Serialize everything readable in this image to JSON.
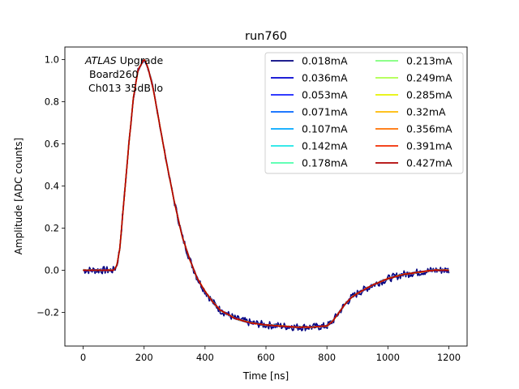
{
  "chart_data": {
    "type": "line",
    "title": "run760",
    "xlabel": "Time [ns]",
    "ylabel": "Amplitude [ADC counts]",
    "xlim": [
      -60,
      1260
    ],
    "ylim": [
      -0.36,
      1.06
    ],
    "xticks": [
      0,
      200,
      400,
      600,
      800,
      1000,
      1200
    ],
    "yticks": [
      -0.2,
      0.0,
      0.2,
      0.4,
      0.6,
      0.8,
      1.0
    ],
    "xtick_labels": [
      "0",
      "200",
      "400",
      "600",
      "800",
      "1000",
      "1200"
    ],
    "ytick_labels": [
      "−0.2",
      "0.0",
      "0.2",
      "0.4",
      "0.6",
      "0.8",
      "1.0"
    ],
    "annotation": {
      "line1_italic": "ATLAS",
      "line1_rest": " Upgrade",
      "line2": "Board260",
      "line3": "Ch013 35dB lo"
    },
    "legend_position": "top-right",
    "legend_columns": 2,
    "pulse_shape": {
      "x": [
        0,
        100,
        110,
        120,
        135,
        150,
        165,
        180,
        195,
        200,
        205,
        215,
        230,
        250,
        275,
        300,
        325,
        350,
        375,
        400,
        425,
        450,
        475,
        500,
        550,
        600,
        650,
        700,
        750,
        800,
        820,
        840,
        860,
        880,
        900,
        950,
        1000,
        1050,
        1100,
        1150,
        1200
      ],
      "y": [
        0.0,
        0.0,
        0.02,
        0.1,
        0.35,
        0.6,
        0.82,
        0.95,
        0.99,
        1.0,
        0.99,
        0.95,
        0.86,
        0.7,
        0.5,
        0.32,
        0.16,
        0.05,
        -0.04,
        -0.1,
        -0.15,
        -0.19,
        -0.21,
        -0.23,
        -0.25,
        -0.26,
        -0.265,
        -0.27,
        -0.27,
        -0.265,
        -0.24,
        -0.2,
        -0.16,
        -0.13,
        -0.11,
        -0.07,
        -0.04,
        -0.02,
        -0.01,
        0.0,
        0.0
      ]
    },
    "series": [
      {
        "name": "0.018mA",
        "color": "#00007f",
        "noise": 0.018
      },
      {
        "name": "0.036mA",
        "color": "#0000d0",
        "noise": 0.006
      },
      {
        "name": "0.053mA",
        "color": "#1520ff",
        "noise": 0.004
      },
      {
        "name": "0.071mA",
        "color": "#0066ff",
        "noise": 0.003
      },
      {
        "name": "0.107mA",
        "color": "#00a8ff",
        "noise": 0.002
      },
      {
        "name": "0.142mA",
        "color": "#1ce6e6",
        "noise": 0.002
      },
      {
        "name": "0.178mA",
        "color": "#4bffab",
        "noise": 0.002
      },
      {
        "name": "0.213mA",
        "color": "#7dff7a",
        "noise": 0.002
      },
      {
        "name": "0.249mA",
        "color": "#adff4a",
        "noise": 0.002
      },
      {
        "name": "0.285mA",
        "color": "#e6f200",
        "noise": 0.002
      },
      {
        "name": "0.32mA",
        "color": "#ffb900",
        "noise": 0.002
      },
      {
        "name": "0.356mA",
        "color": "#ff7100",
        "noise": 0.002
      },
      {
        "name": "0.391mA",
        "color": "#f22c00",
        "noise": 0.002
      },
      {
        "name": "0.427mA",
        "color": "#b00000",
        "noise": 0.002
      }
    ]
  }
}
